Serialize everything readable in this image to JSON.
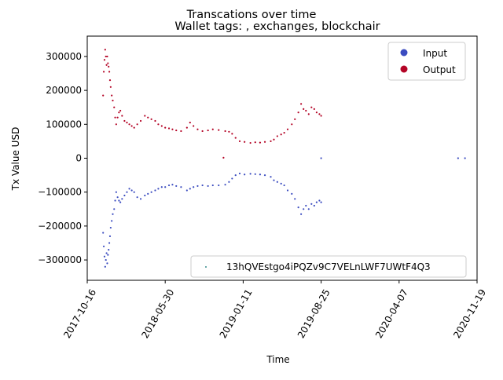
{
  "chart_data": {
    "type": "scatter",
    "title": "Transcations over time",
    "subtitle": "Wallet tags: , exchanges, blockchair",
    "xlabel": "Time",
    "ylabel": "Tx Value USD",
    "x_ticks": [
      "2017-10-16",
      "2018-05-30",
      "2019-01-11",
      "2019-08-25",
      "2020-04-07",
      "2020-11-19"
    ],
    "y_ticks": [
      300000,
      200000,
      100000,
      0,
      -100000,
      -200000,
      -300000
    ],
    "y_tick_labels": [
      "300000",
      "200000",
      "100000",
      "0",
      "−100000",
      "−200000",
      "−300000"
    ],
    "xlim": [
      "2017-10-16",
      "2020-11-19"
    ],
    "ylim": [
      -360000,
      360000
    ],
    "grid": false,
    "legend": {
      "placement": "top-right",
      "entries": [
        {
          "label": "Input",
          "color": "#3b4cc0"
        },
        {
          "label": "Output",
          "color": "#b40426"
        }
      ]
    },
    "address_legend": {
      "placement": "bottom-right",
      "label": "13hQVEstgo4iPQZv9C7VELnLWF7UWtF4Q3",
      "color": "#3b8f8f"
    },
    "series": [
      {
        "name": "Output",
        "color": "#b40426",
        "points": [
          [
            "2017-12-01",
            185000
          ],
          [
            "2017-12-03",
            255000
          ],
          [
            "2017-12-05",
            290000
          ],
          [
            "2017-12-07",
            320000
          ],
          [
            "2017-12-09",
            300000
          ],
          [
            "2017-12-11",
            275000
          ],
          [
            "2017-12-13",
            300000
          ],
          [
            "2017-12-15",
            280000
          ],
          [
            "2017-12-17",
            270000
          ],
          [
            "2017-12-19",
            255000
          ],
          [
            "2017-12-21",
            230000
          ],
          [
            "2017-12-23",
            210000
          ],
          [
            "2017-12-26",
            185000
          ],
          [
            "2017-12-29",
            170000
          ],
          [
            "2018-01-02",
            150000
          ],
          [
            "2018-01-05",
            120000
          ],
          [
            "2018-01-08",
            100000
          ],
          [
            "2018-01-12",
            120000
          ],
          [
            "2018-01-16",
            135000
          ],
          [
            "2018-01-20",
            140000
          ],
          [
            "2018-01-25",
            125000
          ],
          [
            "2018-02-01",
            110000
          ],
          [
            "2018-02-08",
            105000
          ],
          [
            "2018-02-15",
            100000
          ],
          [
            "2018-02-22",
            95000
          ],
          [
            "2018-03-01",
            90000
          ],
          [
            "2018-03-10",
            100000
          ],
          [
            "2018-03-20",
            110000
          ],
          [
            "2018-04-01",
            125000
          ],
          [
            "2018-04-10",
            120000
          ],
          [
            "2018-04-20",
            115000
          ],
          [
            "2018-05-01",
            110000
          ],
          [
            "2018-05-10",
            100000
          ],
          [
            "2018-05-20",
            95000
          ],
          [
            "2018-05-30",
            90000
          ],
          [
            "2018-06-10",
            88000
          ],
          [
            "2018-06-20",
            85000
          ],
          [
            "2018-07-01",
            82000
          ],
          [
            "2018-07-15",
            80000
          ],
          [
            "2018-08-01",
            90000
          ],
          [
            "2018-08-10",
            105000
          ],
          [
            "2018-08-20",
            95000
          ],
          [
            "2018-09-01",
            85000
          ],
          [
            "2018-09-15",
            80000
          ],
          [
            "2018-10-01",
            82000
          ],
          [
            "2018-10-15",
            85000
          ],
          [
            "2018-11-01",
            83000
          ],
          [
            "2018-11-20",
            80000
          ],
          [
            "2018-12-01",
            78000
          ],
          [
            "2018-12-10",
            72000
          ],
          [
            "2018-12-20",
            60000
          ],
          [
            "2019-01-01",
            50000
          ],
          [
            "2019-01-15",
            48000
          ],
          [
            "2019-02-01",
            45000
          ],
          [
            "2019-02-15",
            47000
          ],
          [
            "2019-03-01",
            46000
          ],
          [
            "2019-03-15",
            48000
          ],
          [
            "2019-04-01",
            50000
          ],
          [
            "2019-04-10",
            55000
          ],
          [
            "2019-04-20",
            65000
          ],
          [
            "2019-05-01",
            70000
          ],
          [
            "2019-05-10",
            75000
          ],
          [
            "2019-05-20",
            85000
          ],
          [
            "2019-06-01",
            100000
          ],
          [
            "2019-06-10",
            115000
          ],
          [
            "2019-06-20",
            135000
          ],
          [
            "2019-06-28",
            160000
          ],
          [
            "2019-07-05",
            145000
          ],
          [
            "2019-07-12",
            140000
          ],
          [
            "2019-07-20",
            130000
          ],
          [
            "2019-07-28",
            150000
          ],
          [
            "2019-08-05",
            145000
          ],
          [
            "2019-08-12",
            135000
          ],
          [
            "2019-08-20",
            130000
          ],
          [
            "2019-08-25",
            125000
          ],
          [
            "2018-11-15",
            1500
          ]
        ]
      },
      {
        "name": "Input",
        "color": "#3b4cc0",
        "points": [
          [
            "2017-12-01",
            -220000
          ],
          [
            "2017-12-03",
            -260000
          ],
          [
            "2017-12-05",
            -290000
          ],
          [
            "2017-12-07",
            -320000
          ],
          [
            "2017-12-09",
            -300000
          ],
          [
            "2017-12-11",
            -280000
          ],
          [
            "2017-12-13",
            -310000
          ],
          [
            "2017-12-15",
            -285000
          ],
          [
            "2017-12-17",
            -270000
          ],
          [
            "2017-12-19",
            -250000
          ],
          [
            "2017-12-21",
            -230000
          ],
          [
            "2017-12-23",
            -205000
          ],
          [
            "2017-12-26",
            -185000
          ],
          [
            "2017-12-29",
            -165000
          ],
          [
            "2018-01-02",
            -150000
          ],
          [
            "2018-01-05",
            -125000
          ],
          [
            "2018-01-08",
            -100000
          ],
          [
            "2018-01-12",
            -115000
          ],
          [
            "2018-01-16",
            -125000
          ],
          [
            "2018-01-20",
            -130000
          ],
          [
            "2018-01-25",
            -120000
          ],
          [
            "2018-02-01",
            -110000
          ],
          [
            "2018-02-08",
            -100000
          ],
          [
            "2018-02-15",
            -90000
          ],
          [
            "2018-02-22",
            -95000
          ],
          [
            "2018-03-01",
            -100000
          ],
          [
            "2018-03-10",
            -115000
          ],
          [
            "2018-03-20",
            -120000
          ],
          [
            "2018-04-01",
            -110000
          ],
          [
            "2018-04-10",
            -105000
          ],
          [
            "2018-04-20",
            -100000
          ],
          [
            "2018-05-01",
            -95000
          ],
          [
            "2018-05-10",
            -90000
          ],
          [
            "2018-05-20",
            -85000
          ],
          [
            "2018-05-30",
            -85000
          ],
          [
            "2018-06-10",
            -80000
          ],
          [
            "2018-06-20",
            -78000
          ],
          [
            "2018-07-01",
            -82000
          ],
          [
            "2018-07-15",
            -85000
          ],
          [
            "2018-08-01",
            -95000
          ],
          [
            "2018-08-10",
            -90000
          ],
          [
            "2018-08-20",
            -85000
          ],
          [
            "2018-09-01",
            -82000
          ],
          [
            "2018-09-15",
            -80000
          ],
          [
            "2018-10-01",
            -82000
          ],
          [
            "2018-10-15",
            -80000
          ],
          [
            "2018-11-01",
            -80000
          ],
          [
            "2018-11-20",
            -78000
          ],
          [
            "2018-12-01",
            -70000
          ],
          [
            "2018-12-10",
            -60000
          ],
          [
            "2018-12-20",
            -50000
          ],
          [
            "2019-01-01",
            -45000
          ],
          [
            "2019-01-15",
            -48000
          ],
          [
            "2019-02-01",
            -46000
          ],
          [
            "2019-02-15",
            -47000
          ],
          [
            "2019-03-01",
            -48000
          ],
          [
            "2019-03-15",
            -50000
          ],
          [
            "2019-04-01",
            -55000
          ],
          [
            "2019-04-10",
            -65000
          ],
          [
            "2019-04-20",
            -70000
          ],
          [
            "2019-05-01",
            -75000
          ],
          [
            "2019-05-10",
            -80000
          ],
          [
            "2019-05-20",
            -95000
          ],
          [
            "2019-06-01",
            -105000
          ],
          [
            "2019-06-10",
            -120000
          ],
          [
            "2019-06-20",
            -145000
          ],
          [
            "2019-06-28",
            -165000
          ],
          [
            "2019-07-05",
            -150000
          ],
          [
            "2019-07-12",
            -140000
          ],
          [
            "2019-07-20",
            -150000
          ],
          [
            "2019-07-28",
            -135000
          ],
          [
            "2019-08-05",
            -140000
          ],
          [
            "2019-08-12",
            -130000
          ],
          [
            "2019-08-20",
            -125000
          ],
          [
            "2019-08-25",
            -130000
          ],
          [
            "2019-08-25",
            0
          ],
          [
            "2020-09-25",
            0
          ],
          [
            "2020-10-15",
            0
          ]
        ]
      }
    ]
  }
}
